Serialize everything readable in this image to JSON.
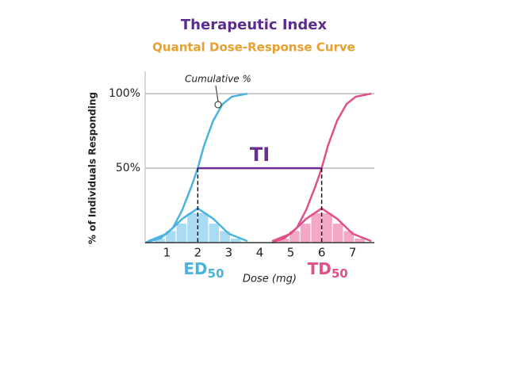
{
  "chart_data": {
    "type": "line",
    "title": "Therapeutic Index",
    "subtitle": "Quantal Dose-Response Curve",
    "y_label": "% of Individuals Responding",
    "x_label": "Dose (mg)",
    "annotation": "Cumulative %",
    "ti_label": "TI",
    "xlim": [
      0.3,
      7.7
    ],
    "ylim": [
      0,
      115
    ],
    "xticks": [
      1,
      2,
      3,
      4,
      5,
      6,
      7
    ],
    "yticks": [
      {
        "value": 50,
        "label": "50%"
      },
      {
        "value": 100,
        "label": "100%"
      }
    ],
    "grid": true,
    "series": [
      {
        "color": "#4bb3e0",
        "x": [
          0.3,
          0.8,
          1.2,
          1.5,
          1.8,
          2,
          2.2,
          2.5,
          2.8,
          3.1,
          3.6
        ],
        "values": [
          0,
          3,
          10,
          22,
          38,
          50,
          65,
          82,
          93,
          98,
          100
        ]
      },
      {
        "color": "#e0508a",
        "x": [
          4.4,
          4.8,
          5.2,
          5.5,
          5.8,
          6,
          6.2,
          6.5,
          6.8,
          7.1,
          7.6
        ],
        "values": [
          0,
          3,
          10,
          22,
          38,
          50,
          65,
          82,
          93,
          98,
          100
        ]
      },
      {
        "color": "#4bb3e0",
        "x": [
          0.4,
          1,
          1.5,
          2,
          2.5,
          3,
          3.6
        ],
        "values": [
          1,
          6,
          16,
          23,
          16,
          6,
          1
        ]
      },
      {
        "color": "#e0508a",
        "x": [
          4.4,
          5,
          5.5,
          6,
          6.5,
          7,
          7.6
        ],
        "values": [
          1,
          6,
          16,
          23,
          16,
          6,
          1
        ]
      }
    ],
    "histograms": [
      {
        "color": "#a9dcf2",
        "bins": [
          0.6,
          0.95,
          1.3,
          1.65,
          2,
          2.35,
          2.7,
          3.05,
          3.4
        ],
        "counts": [
          3,
          8,
          13,
          20,
          20,
          13,
          8,
          3
        ]
      },
      {
        "color": "#f4a8c8",
        "bins": [
          4.6,
          4.95,
          5.3,
          5.65,
          6,
          6.35,
          6.7,
          7.05,
          7.4
        ],
        "counts": [
          3,
          8,
          13,
          20,
          20,
          13,
          8,
          3
        ]
      }
    ],
    "markers": [
      {
        "label": "ED",
        "sub": "50",
        "x": 2,
        "y": 50,
        "color": "#4bb3e0"
      },
      {
        "label": "TD",
        "sub": "50",
        "x": 6,
        "y": 50,
        "color": "#e0508a"
      }
    ],
    "ti_color": "#6a2d91"
  }
}
